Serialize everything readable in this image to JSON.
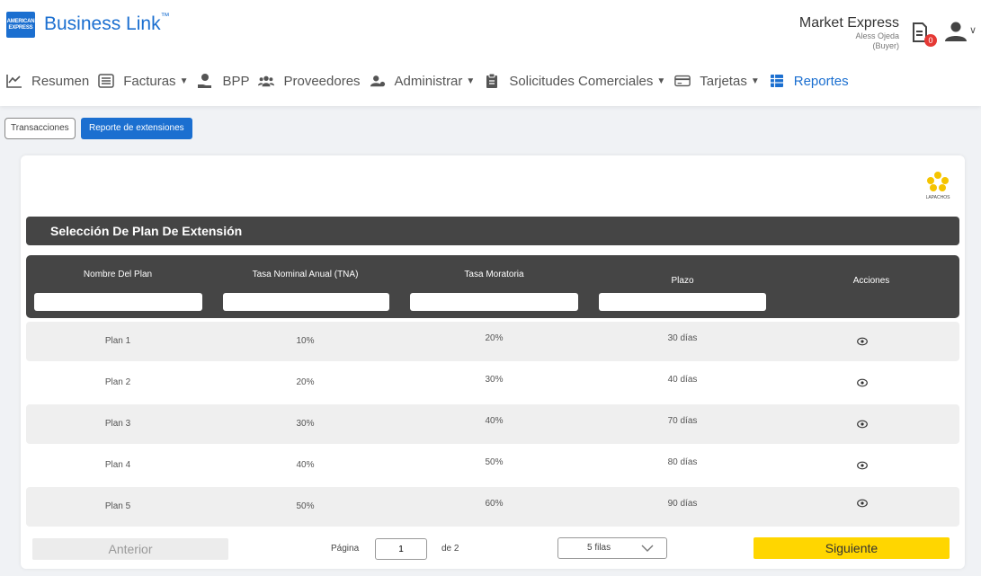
{
  "header": {
    "logo_text": "AMERICAN EXPRESS",
    "brand": "Business Link",
    "brand_mark": "™",
    "company_name": "Market Express",
    "user_name": "Aless Ojeda",
    "user_role": "(Buyer)",
    "notification_count": "0"
  },
  "nav": [
    {
      "label": "Resumen",
      "icon": "chart-line-icon"
    },
    {
      "label": "Facturas",
      "icon": "invoice-icon",
      "dropdown": true
    },
    {
      "label": "BPP",
      "icon": "hand-coin-icon"
    },
    {
      "label": "Proveedores",
      "icon": "users-icon"
    },
    {
      "label": "Administrar",
      "icon": "user-gear-icon",
      "dropdown": true
    },
    {
      "label": "Solicitudes Comerciales",
      "icon": "clipboard-icon",
      "dropdown": true
    },
    {
      "label": "Tarjetas",
      "icon": "credit-card-icon",
      "dropdown": true
    },
    {
      "label": "Reportes",
      "icon": "table-icon",
      "active": true
    }
  ],
  "tabs": {
    "transactions": "Transacciones",
    "extensions_report": "Reporte de extensiones"
  },
  "partner_logo_text": "LAPACHOS",
  "section_title": "Selección De Plan De Extensión",
  "table": {
    "columns": [
      "Nombre Del Plan",
      "Tasa Nominal Anual (TNA)",
      "Tasa Moratoria",
      "Plazo",
      "Acciones"
    ],
    "rows": [
      {
        "plan": "Plan 1",
        "tna": "10%",
        "mora": "20%",
        "plazo": "30 días"
      },
      {
        "plan": "Plan 2",
        "tna": "20%",
        "mora": "30%",
        "plazo": "40 días"
      },
      {
        "plan": "Plan 3",
        "tna": "30%",
        "mora": "40%",
        "plazo": "70 días"
      },
      {
        "plan": "Plan 4",
        "tna": "40%",
        "mora": "50%",
        "plazo": "80 días"
      },
      {
        "plan": "Plan 5",
        "tna": "50%",
        "mora": "60%",
        "plazo": "90 días"
      }
    ]
  },
  "pagination": {
    "prev": "Anterior",
    "page_label": "Página",
    "page_value": "1",
    "of_label": "de 2",
    "rows_per_page": "5 filas",
    "next": "Siguiente"
  },
  "colors": {
    "brand_blue": "#1b6fd0",
    "dark_header": "#454545",
    "next_yellow": "#ffd600",
    "badge_red": "#e53935"
  }
}
